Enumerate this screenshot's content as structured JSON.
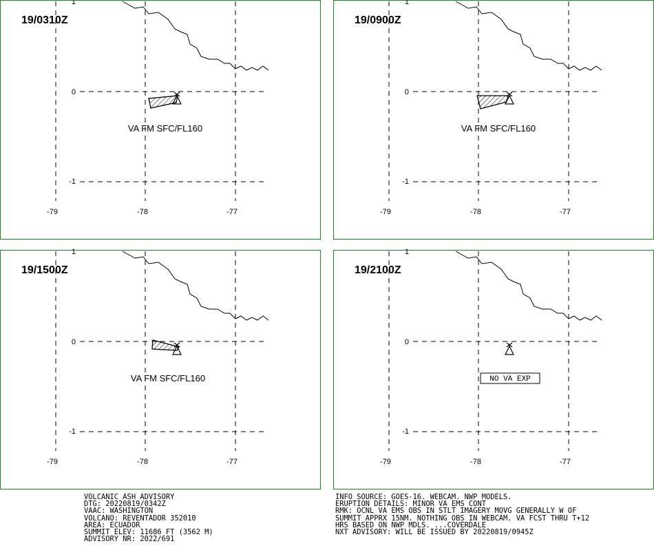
{
  "panels": [
    {
      "title": "19/0310Z",
      "label": "VA FM SFC/FL160",
      "ash": "A",
      "nova": false
    },
    {
      "title": "19/0900Z",
      "label": "VA FM SFC/FL160",
      "ash": "B",
      "nova": false
    },
    {
      "title": "19/1500Z",
      "label": "VA FM SFC/FL160",
      "ash": "C",
      "nova": false
    },
    {
      "title": "19/2100Z",
      "label": "",
      "ash": "none",
      "nova": true,
      "nova_text": "NO VA EXP"
    }
  ],
  "axis": {
    "lon_ticks": [
      "-79",
      "-78",
      "-77"
    ],
    "lat_ticks": [
      "1",
      "0",
      "-1"
    ]
  },
  "advisory_left": [
    "VOLCANIC ASH ADVISORY",
    "DTG: 20220819/0342Z",
    "VAAC: WASHINGTON",
    "VOLCANO: REVENTADOR 352010",
    "AREA: ECUADOR",
    "SUMMIT ELEV: 11686 FT (3562 M)",
    "ADVISORY NR: 2022/691"
  ],
  "advisory_right": [
    "INFO SOURCE: GOES-16. WEBCAM. NWP MODELS.",
    "ERUPTION DETAILS: MINOR VA EMS CONT",
    "RMK: OCNL VA EMS OBS IN STLT IMAGERY MOVG GENERALLY W OF",
    "SUMMIT APPRX 15NM. NOTHING OBS IN WEBCAM. VA FCST THRU T+12",
    "HRS BASED ON NWP MDLS. ...COVERDALE",
    "NXT ADVISORY: WILL BE ISSUED BY 20220819/0945Z"
  ],
  "colors": {
    "frame": "#1a8a1a"
  }
}
